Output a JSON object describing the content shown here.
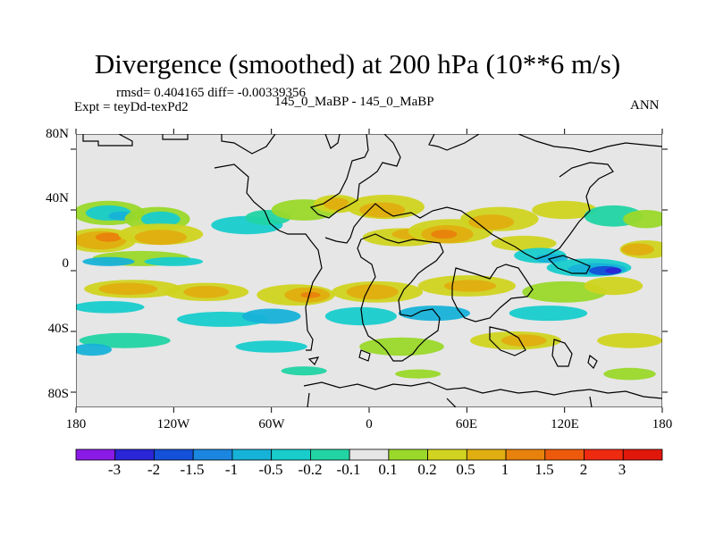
{
  "title": "Divergence (smoothed) at 200 hPa (10**6 m/s)",
  "stats": "rmsd= 0.404165 diff= -0.00339356",
  "experiment": "Expt = teyDd-texPd2",
  "case": "145_0_MaBP - 145_0_MaBP",
  "season": "ANN",
  "lat_ticks": [
    "80N",
    "40N",
    "0",
    "40S",
    "80S"
  ],
  "lon_ticks": [
    "180",
    "120W",
    "60W",
    "0",
    "60E",
    "120E",
    "180"
  ],
  "colorbar": {
    "labels": [
      "-3",
      "-2",
      "-1.5",
      "-1",
      "-0.5",
      "-0.2",
      "-0.1",
      "0.1",
      "0.2",
      "0.5",
      "1",
      "1.5",
      "2",
      "3"
    ],
    "colors": [
      "#8a1be6",
      "#2a25d6",
      "#1450d8",
      "#1a86e0",
      "#17b2d8",
      "#18cccc",
      "#22d4a4",
      "#e6e6e6",
      "#9ad82a",
      "#d0d420",
      "#e0ae10",
      "#e8820c",
      "#ee5a0c",
      "#ee2a10",
      "#e0180c"
    ]
  },
  "map": {
    "background": "#e6e6e6",
    "lat_range": [
      -90,
      90
    ],
    "lon_range": [
      -180,
      180
    ]
  }
}
